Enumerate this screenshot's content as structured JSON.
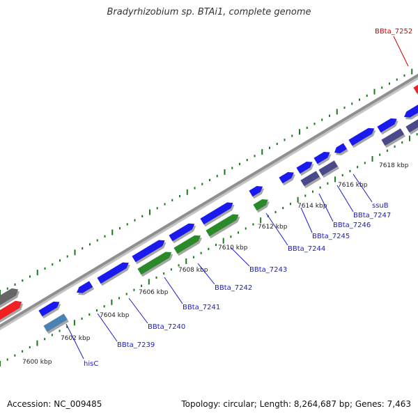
{
  "title": "Bradyrhizobium sp. BTAi1, complete genome",
  "footer": {
    "accession": "Accession: NC_009485",
    "summary": "Topology: circular; Length: 8,264,687 bp; Genes: 7,463"
  },
  "colors": {
    "backbone": "#8f8f8f",
    "tick": "#1a7a1a",
    "blue_cds": "#1a1aee",
    "green_cds": "#2a8a2a",
    "purple_cds": "#4a4a8a",
    "steel_cds": "#4a82b4",
    "red_feature": "#ee2222",
    "gray_feature": "#666666",
    "label_blue": "#1a1acc",
    "label_red": "#cc0000"
  },
  "ticks": [
    "7600 kbp",
    "7602 kbp",
    "7604 kbp",
    "7606 kbp",
    "7608 kbp",
    "7610 kbp",
    "7612 kbp",
    "7614 kbp",
    "7616 kbp",
    "7618 kbp"
  ],
  "genes": [
    {
      "name": "hisC",
      "color": "label_blue"
    },
    {
      "name": "BBta_7239",
      "color": "label_blue"
    },
    {
      "name": "BBta_7240",
      "color": "label_blue"
    },
    {
      "name": "BBta_7241",
      "color": "label_blue"
    },
    {
      "name": "BBta_7242",
      "color": "label_blue"
    },
    {
      "name": "BBta_7243",
      "color": "label_blue"
    },
    {
      "name": "BBta_7244",
      "color": "label_blue"
    },
    {
      "name": "BBta_7245",
      "color": "label_blue"
    },
    {
      "name": "BBta_7246",
      "color": "label_blue"
    },
    {
      "name": "BBta_7247",
      "color": "label_blue"
    },
    {
      "name": "ssuB",
      "color": "label_blue"
    },
    {
      "name": "BBta_7252",
      "color": "label_red"
    }
  ]
}
